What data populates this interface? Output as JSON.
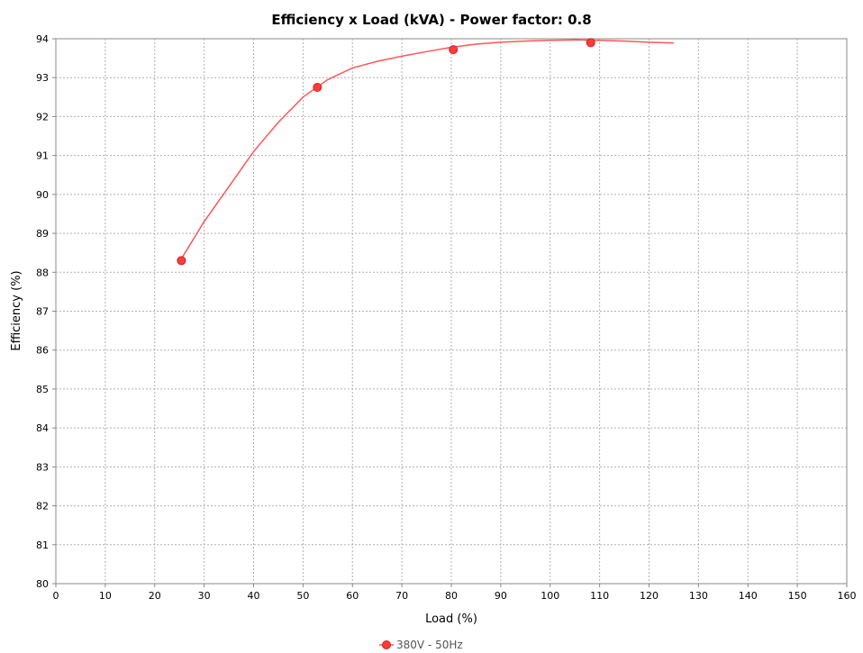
{
  "chart_data": {
    "type": "line",
    "title": "Efficiency x Load (kVA) - Power factor: 0.8",
    "xlabel": "Load (%)",
    "ylabel": "Efficiency (%)",
    "xlim": [
      0,
      160
    ],
    "ylim": [
      80,
      94
    ],
    "x_ticks": [
      0,
      10,
      20,
      30,
      40,
      50,
      60,
      70,
      80,
      90,
      100,
      110,
      120,
      130,
      140,
      150,
      160
    ],
    "y_ticks": [
      80,
      81,
      82,
      83,
      84,
      85,
      86,
      87,
      88,
      89,
      90,
      91,
      92,
      93,
      94
    ],
    "grid": true,
    "legend_position": "bottom",
    "series": [
      {
        "name": "380V - 50Hz",
        "color": "#ff5555",
        "points": [
          {
            "x": 25.4,
            "y": 88.3
          },
          {
            "x": 52.9,
            "y": 92.75
          },
          {
            "x": 80.4,
            "y": 93.72
          },
          {
            "x": 108.2,
            "y": 93.9
          }
        ],
        "fitted_curve": [
          {
            "x": 25.4,
            "y": 88.35
          },
          {
            "x": 30,
            "y": 89.3
          },
          {
            "x": 35,
            "y": 90.2
          },
          {
            "x": 40,
            "y": 91.1
          },
          {
            "x": 45,
            "y": 91.85
          },
          {
            "x": 50,
            "y": 92.5
          },
          {
            "x": 55,
            "y": 92.95
          },
          {
            "x": 60,
            "y": 93.25
          },
          {
            "x": 65,
            "y": 93.42
          },
          {
            "x": 70,
            "y": 93.55
          },
          {
            "x": 75,
            "y": 93.67
          },
          {
            "x": 80,
            "y": 93.78
          },
          {
            "x": 85,
            "y": 93.86
          },
          {
            "x": 90,
            "y": 93.91
          },
          {
            "x": 95,
            "y": 93.94
          },
          {
            "x": 100,
            "y": 93.96
          },
          {
            "x": 105,
            "y": 93.97
          },
          {
            "x": 110,
            "y": 93.96
          },
          {
            "x": 115,
            "y": 93.94
          },
          {
            "x": 120,
            "y": 93.91
          },
          {
            "x": 125,
            "y": 93.89
          }
        ]
      }
    ]
  }
}
